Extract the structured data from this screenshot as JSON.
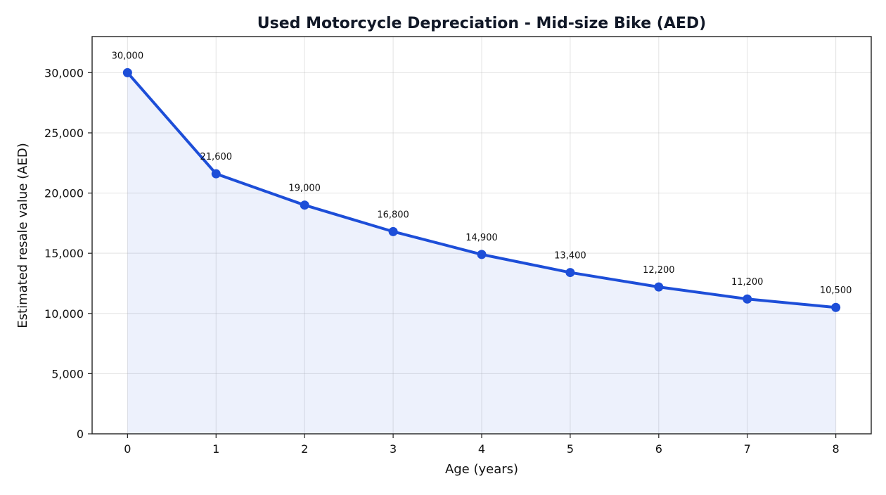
{
  "chart_data": {
    "type": "line",
    "title": "Used Motorcycle Depreciation - Mid-size Bike (AED)",
    "xlabel": "Age (years)",
    "ylabel": "Estimated resale value (AED)",
    "x": [
      0,
      1,
      2,
      3,
      4,
      5,
      6,
      7,
      8
    ],
    "values": [
      30000,
      21600,
      19000,
      16800,
      14900,
      13400,
      12200,
      11200,
      10500
    ],
    "data_labels": [
      "30,000",
      "21,600",
      "19,000",
      "16,800",
      "14,900",
      "13,400",
      "12,200",
      "11,200",
      "10,500"
    ],
    "x_ticks": [
      "0",
      "1",
      "2",
      "3",
      "4",
      "5",
      "6",
      "7",
      "8"
    ],
    "y_ticks": [
      0,
      5000,
      10000,
      15000,
      20000,
      25000,
      30000
    ],
    "y_tick_labels": [
      "0",
      "5,000",
      "10,000",
      "15,000",
      "20,000",
      "25,000",
      "30,000"
    ],
    "xlim": [
      -0.4,
      8.4
    ],
    "ylim": [
      0,
      33000
    ],
    "grid": true,
    "legend": "none",
    "line_color": "#1d4ed8",
    "fill_color": "#1d4ed8",
    "fill_opacity": 0.08
  }
}
